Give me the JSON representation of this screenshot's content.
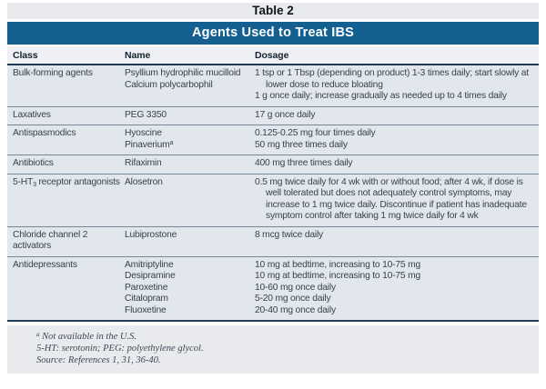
{
  "caption": "Table 2",
  "banner": {
    "title": "Agents Used to Treat IBS"
  },
  "columns": {
    "class": "Class",
    "name": "Name",
    "dosage": "Dosage"
  },
  "rows": [
    {
      "class": "Bulk-forming agents",
      "names": [
        "Psyllium hydrophilic mucilloid",
        "Calcium polycarbophil"
      ],
      "dosages": [
        "1 tsp or 1 Tbsp (depending on product) 1-3 times daily; start slowly at lower dose to reduce bloating",
        "1 g once daily; increase gradually as needed up to 4 times daily"
      ]
    },
    {
      "class": "Laxatives",
      "names": [
        "PEG 3350"
      ],
      "dosages": [
        "17 g once daily"
      ]
    },
    {
      "class": "Antispasmodics",
      "names": [
        "Hyoscine",
        {
          "text": "Pinaverium",
          "sup": "a"
        }
      ],
      "dosages": [
        "0.125-0.25 mg four times daily",
        "50 mg three times daily"
      ]
    },
    {
      "class": "Antibiotics",
      "names": [
        "Rifaximin"
      ],
      "dosages": [
        "400 mg three times daily"
      ]
    },
    {
      "class_parts": {
        "pre": "5-HT",
        "sub": "3",
        "post": " receptor antagonists"
      },
      "names": [
        "Alosetron"
      ],
      "dosages": [
        "0.5 mg twice daily for 4 wk with or without food; after 4 wk, if dose is well tolerated but does not adequately control symptoms, may increase to 1 mg twice daily. Discontinue if patient has inadequate symptom control after taking 1 mg twice daily for 4 wk"
      ]
    },
    {
      "class": "Chloride channel 2 activators",
      "names": [
        "Lubiprostone"
      ],
      "dosages": [
        "8 mcg twice daily"
      ]
    },
    {
      "class": "Antidepressants",
      "names": [
        "Amitriptyline",
        "Desipramine",
        "Paroxetine",
        "Citalopram",
        "Fluoxetine"
      ],
      "dosages": [
        "10 mg at bedtime, increasing to 10-75 mg",
        "10 mg at bedtime, increasing to 10-75 mg",
        "10-60 mg once daily",
        "5-20 mg once daily",
        "20-40 mg once daily"
      ]
    }
  ],
  "footnotes": [
    {
      "sup": "a",
      "text": " Not available in the U.S."
    },
    {
      "text": "5-HT: serotonin; PEG: polyethylene glycol."
    },
    {
      "text": "Source: References 1, 31, 36-40."
    }
  ],
  "colors": {
    "banner_blue": "#136091",
    "band_gray": "#e8eaee",
    "row_gray": "#e2e6ed",
    "header_rule_navy": "#1e3c57",
    "row_separator": "#76879a"
  }
}
